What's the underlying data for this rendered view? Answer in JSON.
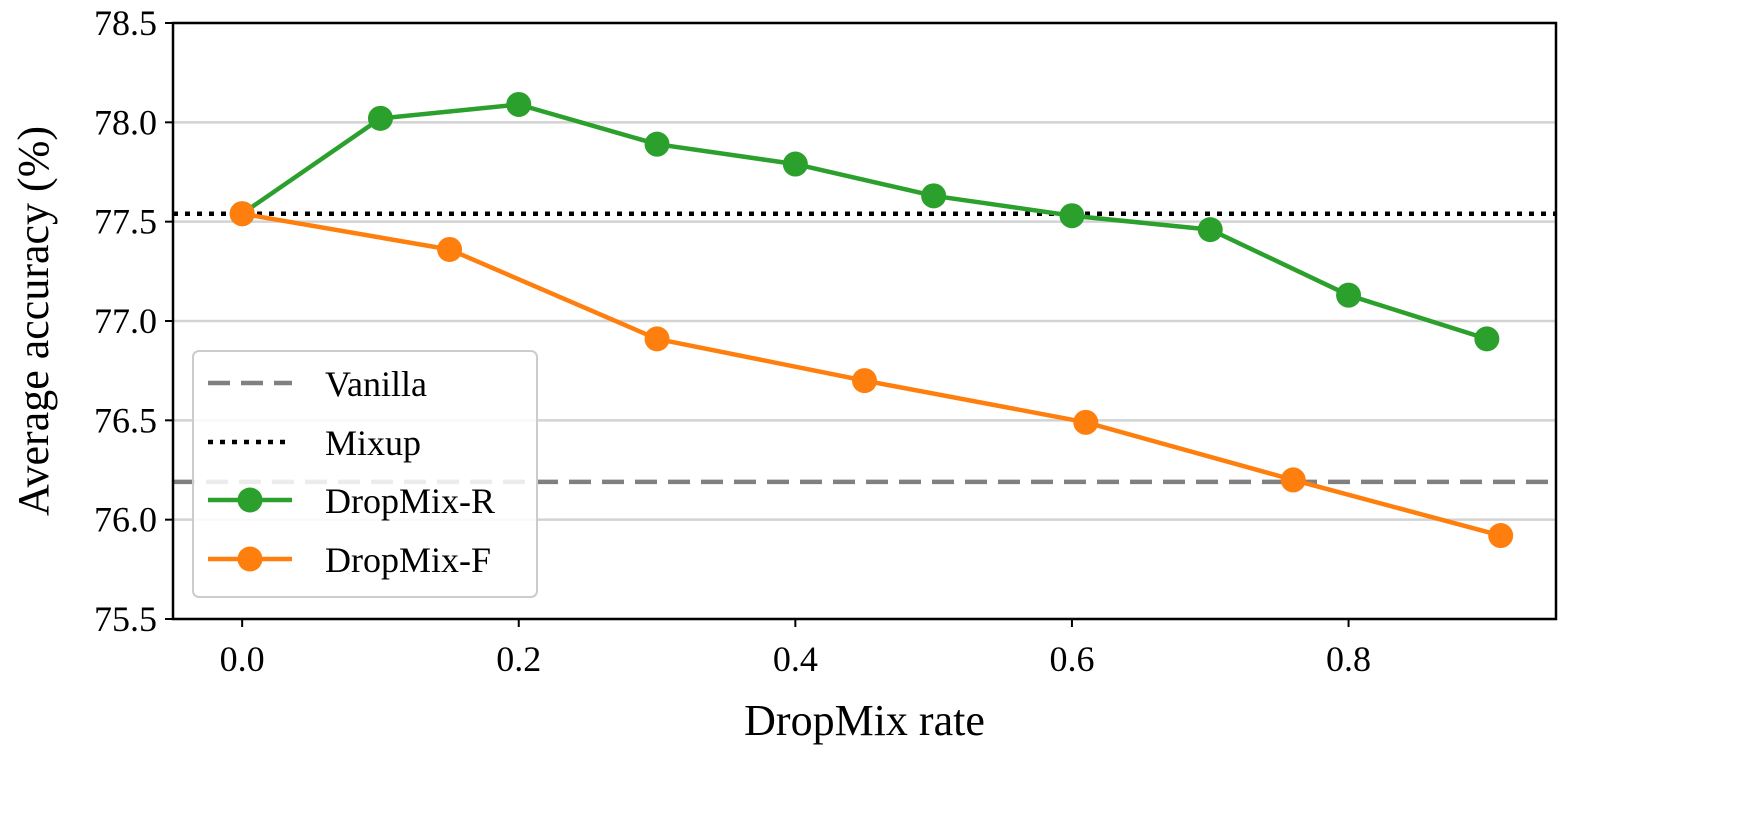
{
  "chart_data": {
    "type": "line",
    "title": "",
    "xlabel": "DropMix rate",
    "ylabel": "Average accuracy (%)",
    "xlim": [
      -0.05,
      0.95
    ],
    "ylim": [
      75.5,
      78.5
    ],
    "xticks": [
      "0.0",
      "0.2",
      "0.4",
      "0.6",
      "0.8"
    ],
    "yticks": [
      "75.5",
      "76.0",
      "76.5",
      "77.0",
      "77.5",
      "78.0",
      "78.5"
    ],
    "grid": "horizontal",
    "legend_position": "lower-left",
    "series": [
      {
        "name": "DropMix-R",
        "color": "#2ca02c",
        "x": [
          0.0,
          0.1,
          0.2,
          0.3,
          0.4,
          0.5,
          0.6,
          0.7,
          0.8,
          0.9
        ],
        "y": [
          77.54,
          78.02,
          78.09,
          77.89,
          77.79,
          77.63,
          77.53,
          77.46,
          77.13,
          76.91
        ]
      },
      {
        "name": "DropMix-F",
        "color": "#ff7f0e",
        "x": [
          0.0,
          0.15,
          0.3,
          0.45,
          0.61,
          0.76,
          0.91
        ],
        "y": [
          77.54,
          77.36,
          76.91,
          76.7,
          76.49,
          76.2,
          75.92
        ]
      }
    ],
    "reference_lines": [
      {
        "name": "Vanilla",
        "y": 76.19,
        "style": "dashed",
        "color": "#808080"
      },
      {
        "name": "Mixup",
        "y": 77.54,
        "style": "dotted",
        "color": "#000000"
      }
    ]
  }
}
